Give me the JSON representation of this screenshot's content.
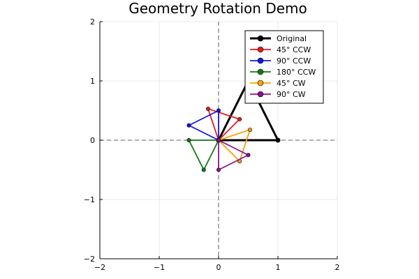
{
  "chart_data": {
    "type": "line",
    "title": "Geometry Rotation Demo",
    "xlabel": "",
    "ylabel": "",
    "xlim": [
      -2,
      2
    ],
    "ylim": [
      -2,
      2
    ],
    "xticks": [
      -2,
      -1,
      0,
      1,
      2
    ],
    "yticks": [
      -2,
      -1,
      0,
      1,
      2
    ],
    "xtick_labels": [
      "−2",
      "−1",
      "0",
      "1",
      "2"
    ],
    "ytick_labels": [
      "−2",
      "−1",
      "0",
      "1",
      "2"
    ],
    "grid": true,
    "reference_lines": "dashed gray lines at x = 0 and y = 0",
    "legend_position": "top-right",
    "series": [
      {
        "name": "Original",
        "color": "#000000",
        "points": [
          [
            0,
            0
          ],
          [
            1,
            0
          ],
          [
            0.5,
            1
          ],
          [
            0,
            0
          ]
        ]
      },
      {
        "name": "45° CCW",
        "color": "#e6191c",
        "points": [
          [
            0,
            0
          ],
          [
            0.354,
            0.354
          ],
          [
            -0.177,
            0.53
          ],
          [
            0,
            0
          ]
        ]
      },
      {
        "name": "90° CCW",
        "color": "#1414e6",
        "points": [
          [
            0,
            0
          ],
          [
            0,
            0.5
          ],
          [
            -0.5,
            0.25
          ],
          [
            0,
            0
          ]
        ]
      },
      {
        "name": "180° CCW",
        "color": "#147814",
        "points": [
          [
            0,
            0
          ],
          [
            -0.5,
            0
          ],
          [
            -0.25,
            -0.5
          ],
          [
            0,
            0
          ]
        ]
      },
      {
        "name": "45° CW",
        "color": "#f5a012",
        "points": [
          [
            0,
            0
          ],
          [
            0.354,
            -0.354
          ],
          [
            0.53,
            0.177
          ],
          [
            0,
            0
          ]
        ]
      },
      {
        "name": "90° CW",
        "color": "#8c148c",
        "points": [
          [
            0,
            0
          ],
          [
            0,
            -0.5
          ],
          [
            0.5,
            -0.25
          ],
          [
            0,
            0
          ]
        ]
      }
    ]
  }
}
